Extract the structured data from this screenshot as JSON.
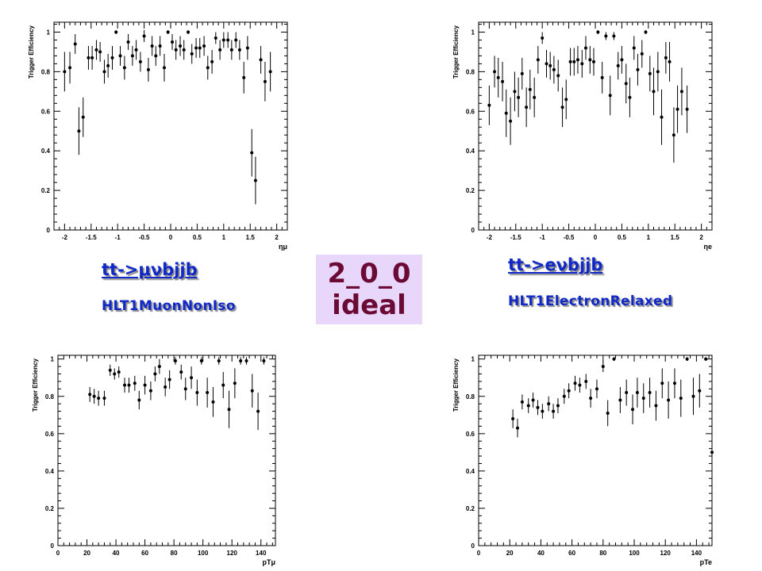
{
  "labels": {
    "mu_process": "tt->μνbjjb",
    "mu_trigger": "HLT1MuonNonIso",
    "e_process": "tt->eνbjjb",
    "e_trigger": "HLT1ElectronRelaxed"
  },
  "banner": {
    "line1": "2_0_0",
    "line2": "ideal"
  },
  "chart_data": [
    {
      "type": "scatter",
      "id": "muon-eta",
      "ylabel": "Trigger Efficiency",
      "xlabel": "ημ",
      "xlim": [
        -2.2,
        2.2
      ],
      "ylim": [
        0,
        1.05
      ],
      "xticks": [
        -2,
        -1.5,
        -1,
        -0.5,
        0,
        0.5,
        1,
        1.5,
        2
      ],
      "xtick_labels": [
        "-2",
        "-1.5",
        "-1",
        "-0.5",
        "0",
        "0.5",
        "1",
        "1.5",
        "2"
      ],
      "yticks": [
        0,
        0.2,
        0.4,
        0.6,
        0.8,
        1
      ],
      "ytick_labels": [
        "0",
        "0.2",
        "0.4",
        "0.6",
        "0.8",
        "1"
      ],
      "points": [
        [
          -2.0,
          0.8,
          0.1
        ],
        [
          -1.9,
          0.82,
          0.08
        ],
        [
          -1.8,
          0.94,
          0.05
        ],
        [
          -1.73,
          0.5,
          0.12
        ],
        [
          -1.65,
          0.57,
          0.1
        ],
        [
          -1.55,
          0.87,
          0.06
        ],
        [
          -1.48,
          0.87,
          0.06
        ],
        [
          -1.4,
          0.91,
          0.05
        ],
        [
          -1.33,
          0.9,
          0.05
        ],
        [
          -1.25,
          0.8,
          0.06
        ],
        [
          -1.18,
          0.83,
          0.06
        ],
        [
          -1.1,
          0.87,
          0.06
        ],
        [
          -1.03,
          1.0,
          0.01
        ],
        [
          -0.95,
          0.88,
          0.05
        ],
        [
          -0.87,
          0.82,
          0.06
        ],
        [
          -0.8,
          0.95,
          0.04
        ],
        [
          -0.72,
          0.88,
          0.05
        ],
        [
          -0.65,
          0.91,
          0.05
        ],
        [
          -0.57,
          0.85,
          0.05
        ],
        [
          -0.5,
          0.98,
          0.03
        ],
        [
          -0.42,
          0.81,
          0.06
        ],
        [
          -0.35,
          0.93,
          0.05
        ],
        [
          -0.28,
          0.88,
          0.05
        ],
        [
          -0.2,
          0.93,
          0.05
        ],
        [
          -0.12,
          0.82,
          0.07
        ],
        [
          -0.05,
          1.0,
          0.01
        ],
        [
          0.03,
          0.95,
          0.04
        ],
        [
          0.1,
          0.91,
          0.05
        ],
        [
          0.18,
          0.93,
          0.05
        ],
        [
          0.25,
          0.91,
          0.05
        ],
        [
          0.33,
          1.0,
          0.01
        ],
        [
          0.4,
          0.89,
          0.05
        ],
        [
          0.48,
          0.92,
          0.05
        ],
        [
          0.55,
          0.92,
          0.05
        ],
        [
          0.63,
          0.93,
          0.05
        ],
        [
          0.7,
          0.82,
          0.06
        ],
        [
          0.78,
          0.85,
          0.06
        ],
        [
          0.85,
          0.97,
          0.03
        ],
        [
          0.93,
          0.91,
          0.05
        ],
        [
          1.0,
          0.96,
          0.04
        ],
        [
          1.08,
          0.96,
          0.04
        ],
        [
          1.15,
          0.91,
          0.05
        ],
        [
          1.23,
          0.96,
          0.04
        ],
        [
          1.3,
          0.91,
          0.05
        ],
        [
          1.38,
          0.77,
          0.08
        ],
        [
          1.45,
          0.92,
          0.06
        ],
        [
          1.53,
          0.39,
          0.12
        ],
        [
          1.6,
          0.25,
          0.12
        ],
        [
          1.7,
          0.86,
          0.07
        ],
        [
          1.78,
          0.75,
          0.1
        ],
        [
          1.88,
          0.8,
          0.1
        ]
      ]
    },
    {
      "type": "scatter",
      "id": "electron-eta",
      "ylabel": "Trigger Efficiency",
      "xlabel": "ηe",
      "xlim": [
        -2.2,
        2.2
      ],
      "ylim": [
        0,
        1.05
      ],
      "xticks": [
        -2,
        -1.5,
        -1,
        -0.5,
        0,
        0.5,
        1,
        1.5,
        2
      ],
      "xtick_labels": [
        "-2",
        "-1.5",
        "-1",
        "-0.5",
        "0",
        "0.5",
        "1",
        "1.5",
        "2"
      ],
      "yticks": [
        0,
        0.2,
        0.4,
        0.6,
        0.8,
        1
      ],
      "ytick_labels": [
        "0",
        "0.2",
        "0.4",
        "0.6",
        "0.8",
        "1"
      ],
      "points": [
        [
          -2.0,
          0.63,
          0.1
        ],
        [
          -1.9,
          0.8,
          0.08
        ],
        [
          -1.83,
          0.77,
          0.1
        ],
        [
          -1.75,
          0.75,
          0.1
        ],
        [
          -1.68,
          0.59,
          0.12
        ],
        [
          -1.6,
          0.55,
          0.12
        ],
        [
          -1.52,
          0.7,
          0.1
        ],
        [
          -1.45,
          0.67,
          0.1
        ],
        [
          -1.38,
          0.79,
          0.08
        ],
        [
          -1.3,
          0.62,
          0.1
        ],
        [
          -1.23,
          0.71,
          0.1
        ],
        [
          -1.15,
          0.67,
          0.1
        ],
        [
          -1.08,
          0.86,
          0.07
        ],
        [
          -1.0,
          0.97,
          0.03
        ],
        [
          -0.92,
          0.84,
          0.07
        ],
        [
          -0.85,
          0.83,
          0.07
        ],
        [
          -0.78,
          0.81,
          0.07
        ],
        [
          -0.7,
          0.78,
          0.08
        ],
        [
          -0.62,
          0.62,
          0.1
        ],
        [
          -0.55,
          0.66,
          0.1
        ],
        [
          -0.47,
          0.85,
          0.07
        ],
        [
          -0.4,
          0.85,
          0.07
        ],
        [
          -0.33,
          0.86,
          0.07
        ],
        [
          -0.25,
          0.84,
          0.07
        ],
        [
          -0.18,
          0.92,
          0.06
        ],
        [
          -0.1,
          0.86,
          0.07
        ],
        [
          -0.03,
          0.85,
          0.07
        ],
        [
          0.05,
          1.0,
          0.01
        ],
        [
          0.13,
          0.77,
          0.08
        ],
        [
          0.2,
          0.98,
          0.02
        ],
        [
          0.28,
          0.68,
          0.1
        ],
        [
          0.35,
          0.98,
          0.02
        ],
        [
          0.43,
          0.83,
          0.07
        ],
        [
          0.5,
          0.86,
          0.07
        ],
        [
          0.58,
          0.74,
          0.1
        ],
        [
          0.65,
          0.67,
          0.1
        ],
        [
          0.73,
          0.92,
          0.06
        ],
        [
          0.8,
          0.81,
          0.08
        ],
        [
          0.88,
          0.89,
          0.07
        ],
        [
          0.95,
          1.0,
          0.01
        ],
        [
          1.03,
          0.79,
          0.09
        ],
        [
          1.1,
          0.7,
          0.12
        ],
        [
          1.18,
          0.8,
          0.1
        ],
        [
          1.25,
          0.57,
          0.14
        ],
        [
          1.33,
          0.87,
          0.08
        ],
        [
          1.4,
          0.85,
          0.1
        ],
        [
          1.48,
          0.48,
          0.14
        ],
        [
          1.55,
          0.61,
          0.12
        ],
        [
          1.63,
          0.7,
          0.12
        ],
        [
          1.73,
          0.61,
          0.12
        ]
      ]
    },
    {
      "type": "scatter",
      "id": "muon-pt",
      "ylabel": "Trigger Efficiency",
      "xlabel": "pTμ",
      "xlim": [
        0,
        150
      ],
      "ylim": [
        0,
        1.02
      ],
      "xticks": [
        0,
        20,
        40,
        60,
        80,
        100,
        120,
        140
      ],
      "xtick_labels": [
        "0",
        "20",
        "40",
        "60",
        "80",
        "100",
        "120",
        "140"
      ],
      "yticks": [
        0,
        0.2,
        0.4,
        0.6,
        0.8,
        1
      ],
      "ytick_labels": [
        "0",
        "0.2",
        "0.4",
        "0.6",
        "0.8",
        "1"
      ],
      "points": [
        [
          22,
          0.81,
          0.04
        ],
        [
          25,
          0.8,
          0.04
        ],
        [
          28,
          0.79,
          0.04
        ],
        [
          32,
          0.79,
          0.04
        ],
        [
          36,
          0.94,
          0.03
        ],
        [
          39,
          0.92,
          0.03
        ],
        [
          42,
          0.93,
          0.03
        ],
        [
          46,
          0.86,
          0.04
        ],
        [
          49,
          0.86,
          0.04
        ],
        [
          53,
          0.87,
          0.04
        ],
        [
          56,
          0.78,
          0.05
        ],
        [
          60,
          0.86,
          0.05
        ],
        [
          64,
          0.83,
          0.05
        ],
        [
          67,
          0.92,
          0.04
        ],
        [
          70,
          0.96,
          0.04
        ],
        [
          74,
          0.85,
          0.05
        ],
        [
          77,
          0.89,
          0.05
        ],
        [
          81,
          0.99,
          0.02
        ],
        [
          85,
          0.93,
          0.04
        ],
        [
          88,
          0.84,
          0.06
        ],
        [
          92,
          0.9,
          0.06
        ],
        [
          96,
          0.82,
          0.07
        ],
        [
          99,
          0.99,
          0.02
        ],
        [
          103,
          0.82,
          0.08
        ],
        [
          107,
          0.77,
          0.08
        ],
        [
          111,
          0.99,
          0.02
        ],
        [
          114,
          0.86,
          0.07
        ],
        [
          118,
          0.73,
          0.1
        ],
        [
          122,
          0.87,
          0.08
        ],
        [
          126,
          0.99,
          0.02
        ],
        [
          130,
          0.99,
          0.02
        ],
        [
          134,
          0.83,
          0.09
        ],
        [
          138,
          0.72,
          0.1
        ],
        [
          142,
          0.99,
          0.02
        ]
      ]
    },
    {
      "type": "scatter",
      "id": "electron-pt",
      "ylabel": "Trigger Efficiency",
      "xlabel": "pTe",
      "xlim": [
        0,
        150
      ],
      "ylim": [
        0,
        1.02
      ],
      "xticks": [
        0,
        20,
        40,
        60,
        80,
        100,
        120,
        140
      ],
      "xtick_labels": [
        "0",
        "20",
        "40",
        "60",
        "80",
        "100",
        "120",
        "140"
      ],
      "yticks": [
        0,
        0.2,
        0.4,
        0.6,
        0.8,
        1
      ],
      "ytick_labels": [
        "0",
        "0.2",
        "0.4",
        "0.6",
        "0.8",
        "1"
      ],
      "points": [
        [
          22,
          0.68,
          0.05
        ],
        [
          25,
          0.63,
          0.05
        ],
        [
          28,
          0.77,
          0.04
        ],
        [
          32,
          0.75,
          0.04
        ],
        [
          35,
          0.78,
          0.04
        ],
        [
          38,
          0.74,
          0.04
        ],
        [
          41,
          0.72,
          0.04
        ],
        [
          45,
          0.76,
          0.04
        ],
        [
          48,
          0.72,
          0.04
        ],
        [
          51,
          0.75,
          0.04
        ],
        [
          55,
          0.8,
          0.04
        ],
        [
          58,
          0.83,
          0.04
        ],
        [
          62,
          0.87,
          0.04
        ],
        [
          65,
          0.86,
          0.04
        ],
        [
          69,
          0.88,
          0.04
        ],
        [
          72,
          0.79,
          0.05
        ],
        [
          76,
          0.84,
          0.05
        ],
        [
          80,
          0.96,
          0.03
        ],
        [
          83,
          0.71,
          0.07
        ],
        [
          87,
          1.0,
          0.01
        ],
        [
          91,
          0.78,
          0.07
        ],
        [
          95,
          0.82,
          0.07
        ],
        [
          99,
          0.73,
          0.08
        ],
        [
          102,
          0.82,
          0.08
        ],
        [
          106,
          0.79,
          0.08
        ],
        [
          110,
          0.82,
          0.08
        ],
        [
          114,
          0.75,
          0.08
        ],
        [
          118,
          0.87,
          0.08
        ],
        [
          122,
          0.78,
          0.1
        ],
        [
          126,
          0.87,
          0.08
        ],
        [
          130,
          0.79,
          0.1
        ],
        [
          134,
          1.0,
          0.01
        ],
        [
          138,
          0.8,
          0.1
        ],
        [
          142,
          0.83,
          0.09
        ],
        [
          146,
          1.0,
          0.01
        ],
        [
          150,
          0.5,
          0.12
        ]
      ]
    }
  ]
}
